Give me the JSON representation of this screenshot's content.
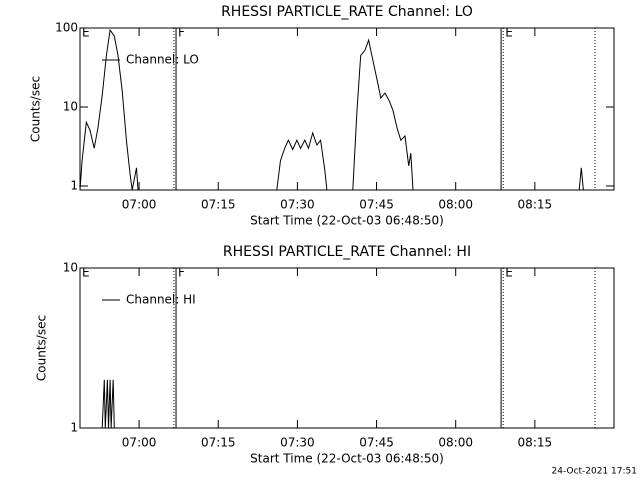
{
  "chart_data": [
    {
      "type": "line",
      "title": "RHESSI PARTICLE_RATE Channel: LO",
      "x_label": "Start Time (22-Oct-03 06:48:50)",
      "y_label": "Counts/sec",
      "log_y": true,
      "xlim": [
        408.8,
        510
      ],
      "ylim": [
        0.89,
        100
      ],
      "xticks": [
        {
          "value": 420,
          "label": "07:00"
        },
        {
          "value": 435,
          "label": "07:15"
        },
        {
          "value": 450,
          "label": "07:30"
        },
        {
          "value": 465,
          "label": "07:45"
        },
        {
          "value": 480,
          "label": "08:00"
        },
        {
          "value": 495,
          "label": "08:15"
        }
      ],
      "yticks": [
        1,
        10,
        100
      ],
      "x": [
        408.8,
        409.2,
        410.0,
        410.7,
        411.5,
        412.2,
        413.0,
        413.8,
        414.5,
        415.3,
        416.0,
        416.8,
        417.6,
        418.3,
        418.7,
        419.5,
        419.8,
        null,
        446.1,
        446.8,
        447.6,
        448.3,
        449.1,
        449.9,
        450.6,
        451.4,
        452.1,
        452.9,
        453.7,
        454.4,
        455.2,
        455.6,
        null,
        460.5,
        461.3,
        462.0,
        462.8,
        463.5,
        464.3,
        465.1,
        465.8,
        466.6,
        467.4,
        468.1,
        468.9,
        469.6,
        470.4,
        471.1,
        471.5,
        471.9,
        null,
        503.4,
        503.8,
        504.2
      ],
      "series": [
        {
          "name": "Channel: LO",
          "color": "#000000",
          "values": [
            0.89,
            2.1,
            6.4,
            5.1,
            3.0,
            5.4,
            14,
            45,
            94,
            79,
            45,
            16,
            3.8,
            1.4,
            0.89,
            1.7,
            0.89,
            null,
            0.89,
            2.1,
            3.0,
            3.8,
            2.9,
            3.8,
            3.0,
            3.8,
            3.0,
            4.7,
            3.3,
            3.8,
            1.6,
            0.89,
            null,
            0.89,
            9.1,
            45,
            52,
            70,
            39,
            22,
            13,
            15,
            12,
            9.1,
            5.4,
            3.8,
            4.3,
            1.8,
            2.6,
            0.89,
            null,
            0.89,
            1.7,
            0.89
          ]
        }
      ],
      "event_lines": [
        {
          "x": 426.6,
          "style": "dotted"
        },
        {
          "x": 427.0,
          "style": "solid"
        },
        {
          "x": 488.6,
          "style": "solid"
        },
        {
          "x": 489.0,
          "style": "dotted"
        },
        {
          "x": 506.4,
          "style": "dotted"
        }
      ],
      "event_labels": [
        {
          "x": 408.8,
          "label": "E"
        },
        {
          "x": 427.0,
          "label": "F"
        },
        {
          "x": 489.0,
          "label": "E"
        }
      ]
    },
    {
      "type": "line",
      "title": "RHESSI PARTICLE_RATE Channel: HI",
      "x_label": "Start Time (22-Oct-03 06:48:50)",
      "y_label": "Counts/sec",
      "log_y": true,
      "xlim": [
        408.8,
        510
      ],
      "ylim": [
        1,
        10
      ],
      "xticks": [
        {
          "value": 420,
          "label": "07:00"
        },
        {
          "value": 435,
          "label": "07:15"
        },
        {
          "value": 450,
          "label": "07:30"
        },
        {
          "value": 465,
          "label": "07:45"
        },
        {
          "value": 480,
          "label": "08:00"
        },
        {
          "value": 495,
          "label": "08:15"
        }
      ],
      "yticks": [
        1,
        10
      ],
      "x": [
        413.0,
        413.4,
        413.6,
        414.0,
        414.2,
        414.5,
        414.7,
        415.1,
        415.3
      ],
      "series": [
        {
          "name": "Channel: HI",
          "color": "#000000",
          "values": [
            1,
            2,
            1,
            2,
            1,
            2,
            1,
            2,
            1
          ]
        }
      ],
      "event_lines": [
        {
          "x": 426.6,
          "style": "dotted"
        },
        {
          "x": 427.0,
          "style": "solid"
        },
        {
          "x": 488.6,
          "style": "solid"
        },
        {
          "x": 489.0,
          "style": "dotted"
        },
        {
          "x": 506.4,
          "style": "dotted"
        }
      ],
      "event_labels": [
        {
          "x": 408.8,
          "label": "E"
        },
        {
          "x": 427.0,
          "label": "F"
        },
        {
          "x": 489.0,
          "label": "E"
        }
      ]
    }
  ],
  "footer": "24-Oct-2021 17:51"
}
